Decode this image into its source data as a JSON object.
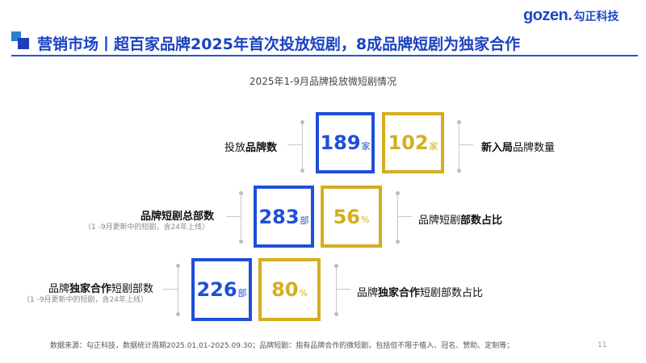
{
  "logo": {
    "brand": "gozen.",
    "cn": "勾正科技"
  },
  "title": "营销市场丨超百家品牌2025年首次投放短剧，8成品牌短剧为独家合作",
  "subtitle": "2025年1-9月品牌投放微短剧情况",
  "rows": [
    {
      "left_label_parts": [
        "投放",
        "品牌数",
        ""
      ],
      "left_sub": "",
      "blue": {
        "value": "189",
        "unit": "家"
      },
      "gold": {
        "value": "102",
        "unit": "家"
      },
      "right_label_parts": [
        "",
        "新入局",
        "品牌数量"
      ]
    },
    {
      "left_label_parts": [
        "",
        "品牌短剧总部数",
        ""
      ],
      "left_sub": "（1 -9月更新中的短剧，含24年上线）",
      "blue": {
        "value": "283",
        "unit": "部"
      },
      "gold": {
        "value": "56",
        "unit": "%"
      },
      "right_label_parts": [
        "品牌短剧",
        "部数占比",
        ""
      ]
    },
    {
      "left_label_parts": [
        "品牌",
        "独家合作",
        "短剧部数"
      ],
      "left_sub": "（1 -9月更新中的短剧，含24年上线）",
      "blue": {
        "value": "226",
        "unit": "部"
      },
      "gold": {
        "value": "80",
        "unit": "%"
      },
      "right_label_parts": [
        "品牌",
        "独家合作",
        "短剧部数占比"
      ]
    }
  ],
  "footer": "数据来源：勾正科技，数据统计周期2025.01.01-2025.09.30；品牌短剧：指有品牌合作的微短剧，包括但不限于植入、冠名、赞助、定制等；",
  "page_number": "11",
  "colors": {
    "blue": "#1e4fd8",
    "gold": "#d4ae1e",
    "title": "#1b43c0"
  }
}
